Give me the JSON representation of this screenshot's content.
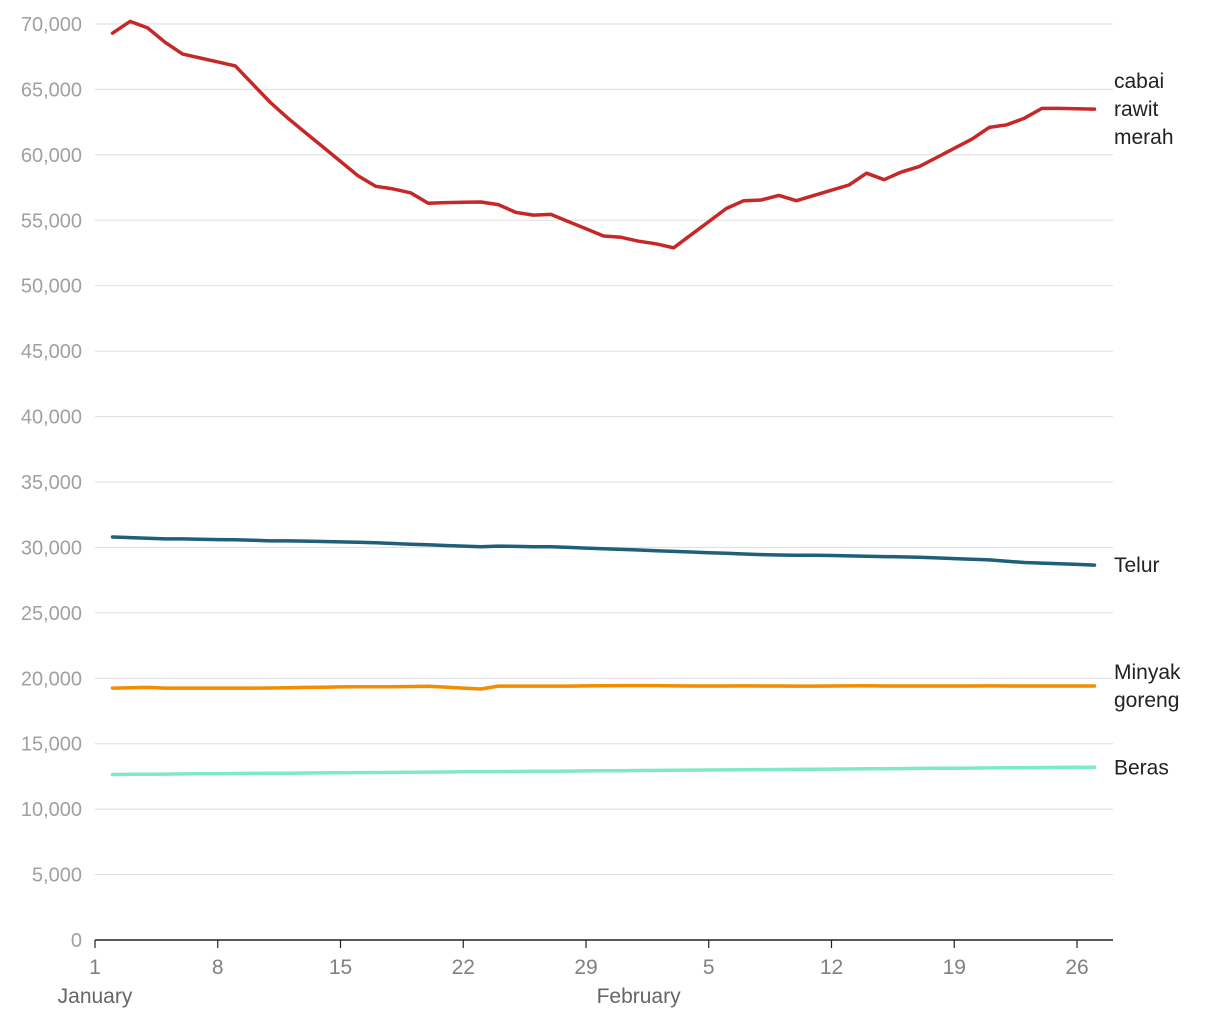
{
  "chart_data": {
    "type": "line",
    "title": "",
    "xlabel": "",
    "ylabel": "",
    "ylim": [
      0,
      70000
    ],
    "yticks": [
      0,
      5000,
      10000,
      15000,
      20000,
      25000,
      30000,
      35000,
      40000,
      45000,
      50000,
      55000,
      60000,
      65000,
      70000
    ],
    "ytick_labels": [
      "0",
      "5,000",
      "10,000",
      "15,000",
      "20,000",
      "25,000",
      "30,000",
      "35,000",
      "40,000",
      "45,000",
      "50,000",
      "55,000",
      "60,000",
      "65,000",
      "70,000"
    ],
    "x_axis": {
      "tick_labels": [
        "1",
        "8",
        "15",
        "22",
        "29",
        "5",
        "12",
        "19",
        "26"
      ],
      "tick_dates": [
        "01-01",
        "01-08",
        "01-15",
        "01-22",
        "01-29",
        "02-05",
        "02-12",
        "02-19",
        "02-26"
      ],
      "month_labels": [
        {
          "text": "January",
          "date": "01-01"
        },
        {
          "text": "February",
          "date": "02-01"
        }
      ]
    },
    "grid": true,
    "legend": "labels at right end of lines",
    "x": [
      "01-02",
      "01-03",
      "01-04",
      "01-05",
      "01-06",
      "01-07",
      "01-08",
      "01-09",
      "01-10",
      "01-11",
      "01-12",
      "01-13",
      "01-14",
      "01-15",
      "01-16",
      "01-17",
      "01-18",
      "01-19",
      "01-20",
      "01-21",
      "01-22",
      "01-23",
      "01-24",
      "01-25",
      "01-26",
      "01-27",
      "01-28",
      "01-29",
      "01-30",
      "01-31",
      "02-01",
      "02-02",
      "02-03",
      "02-04",
      "02-05",
      "02-06",
      "02-07",
      "02-08",
      "02-09",
      "02-10",
      "02-11",
      "02-12",
      "02-13",
      "02-14",
      "02-15",
      "02-16",
      "02-17",
      "02-18",
      "02-19",
      "02-20",
      "02-21",
      "02-22",
      "02-23",
      "02-24",
      "02-25",
      "02-26",
      "02-27"
    ],
    "series": [
      {
        "name": "cabai rawit merah",
        "label_lines": [
          "cabai",
          "rawit",
          "merah"
        ],
        "color": "#c62828",
        "values": [
          69300,
          70200,
          69700,
          68600,
          67700,
          67400,
          67100,
          66800,
          65400,
          64000,
          62800,
          61700,
          60600,
          59500,
          58400,
          57600,
          57400,
          57100,
          56300,
          56350,
          56380,
          56400,
          56200,
          55600,
          55400,
          55450,
          54900,
          54350,
          53800,
          53700,
          53400,
          53200,
          52900,
          53900,
          54900,
          55900,
          56500,
          56550,
          56900,
          56500,
          56900,
          57300,
          57700,
          58600,
          58100,
          58700,
          59100,
          59800,
          60500,
          61200,
          62100,
          62300,
          62800,
          63550,
          63550,
          63520,
          63500
        ]
      },
      {
        "name": "Telur",
        "label_lines": [
          "Telur"
        ],
        "color": "#1f5f7a",
        "values": [
          30800,
          30750,
          30700,
          30650,
          30650,
          30620,
          30600,
          30580,
          30550,
          30500,
          30500,
          30480,
          30450,
          30420,
          30400,
          30350,
          30300,
          30250,
          30200,
          30150,
          30100,
          30050,
          30100,
          30080,
          30050,
          30050,
          30000,
          29950,
          29900,
          29850,
          29800,
          29750,
          29700,
          29650,
          29600,
          29550,
          29500,
          29450,
          29420,
          29400,
          29400,
          29380,
          29350,
          29320,
          29300,
          29280,
          29250,
          29200,
          29150,
          29100,
          29050,
          28950,
          28850,
          28800,
          28750,
          28700,
          28650
        ]
      },
      {
        "name": "Minyak goreng",
        "label_lines": [
          "Minyak",
          "goreng"
        ],
        "color": "#f28c00",
        "values": [
          19250,
          19270,
          19300,
          19250,
          19250,
          19250,
          19250,
          19250,
          19250,
          19260,
          19270,
          19300,
          19320,
          19340,
          19350,
          19350,
          19360,
          19370,
          19390,
          19330,
          19250,
          19180,
          19400,
          19400,
          19400,
          19400,
          19400,
          19420,
          19430,
          19440,
          19440,
          19440,
          19420,
          19410,
          19410,
          19410,
          19420,
          19410,
          19410,
          19400,
          19400,
          19410,
          19420,
          19430,
          19410,
          19410,
          19410,
          19410,
          19410,
          19410,
          19420,
          19410,
          19410,
          19410,
          19410,
          19410,
          19410
        ]
      },
      {
        "name": "Beras",
        "label_lines": [
          "Beras"
        ],
        "color": "#7fe8c8",
        "values": [
          12650,
          12660,
          12670,
          12680,
          12690,
          12700,
          12710,
          12720,
          12730,
          12740,
          12750,
          12760,
          12770,
          12780,
          12790,
          12800,
          12810,
          12820,
          12830,
          12840,
          12850,
          12860,
          12870,
          12880,
          12890,
          12900,
          12910,
          12920,
          12930,
          12940,
          12950,
          12960,
          12970,
          12980,
          12990,
          13000,
          13010,
          13020,
          13030,
          13040,
          13050,
          13060,
          13070,
          13080,
          13090,
          13100,
          13110,
          13120,
          13130,
          13140,
          13150,
          13160,
          13170,
          13180,
          13190,
          13200,
          13200
        ]
      }
    ]
  }
}
